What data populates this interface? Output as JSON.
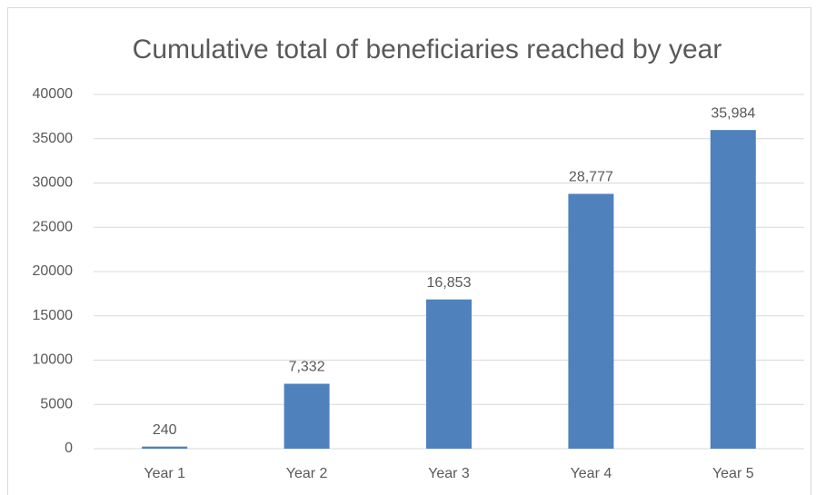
{
  "chart_data": {
    "type": "bar",
    "title": "Cumulative total of beneficiaries reached by year",
    "categories": [
      "Year 1",
      "Year 2",
      "Year 3",
      "Year 4",
      "Year 5"
    ],
    "values": [
      240,
      7332,
      16853,
      28777,
      35984
    ],
    "value_labels": [
      "240",
      "7,332",
      "16,853",
      "28,777",
      "35,984"
    ],
    "color": "#4f81bd",
    "ylim": [
      0,
      40000
    ],
    "yticks": [
      0,
      5000,
      10000,
      15000,
      20000,
      25000,
      30000,
      35000,
      40000
    ],
    "grid": true
  }
}
